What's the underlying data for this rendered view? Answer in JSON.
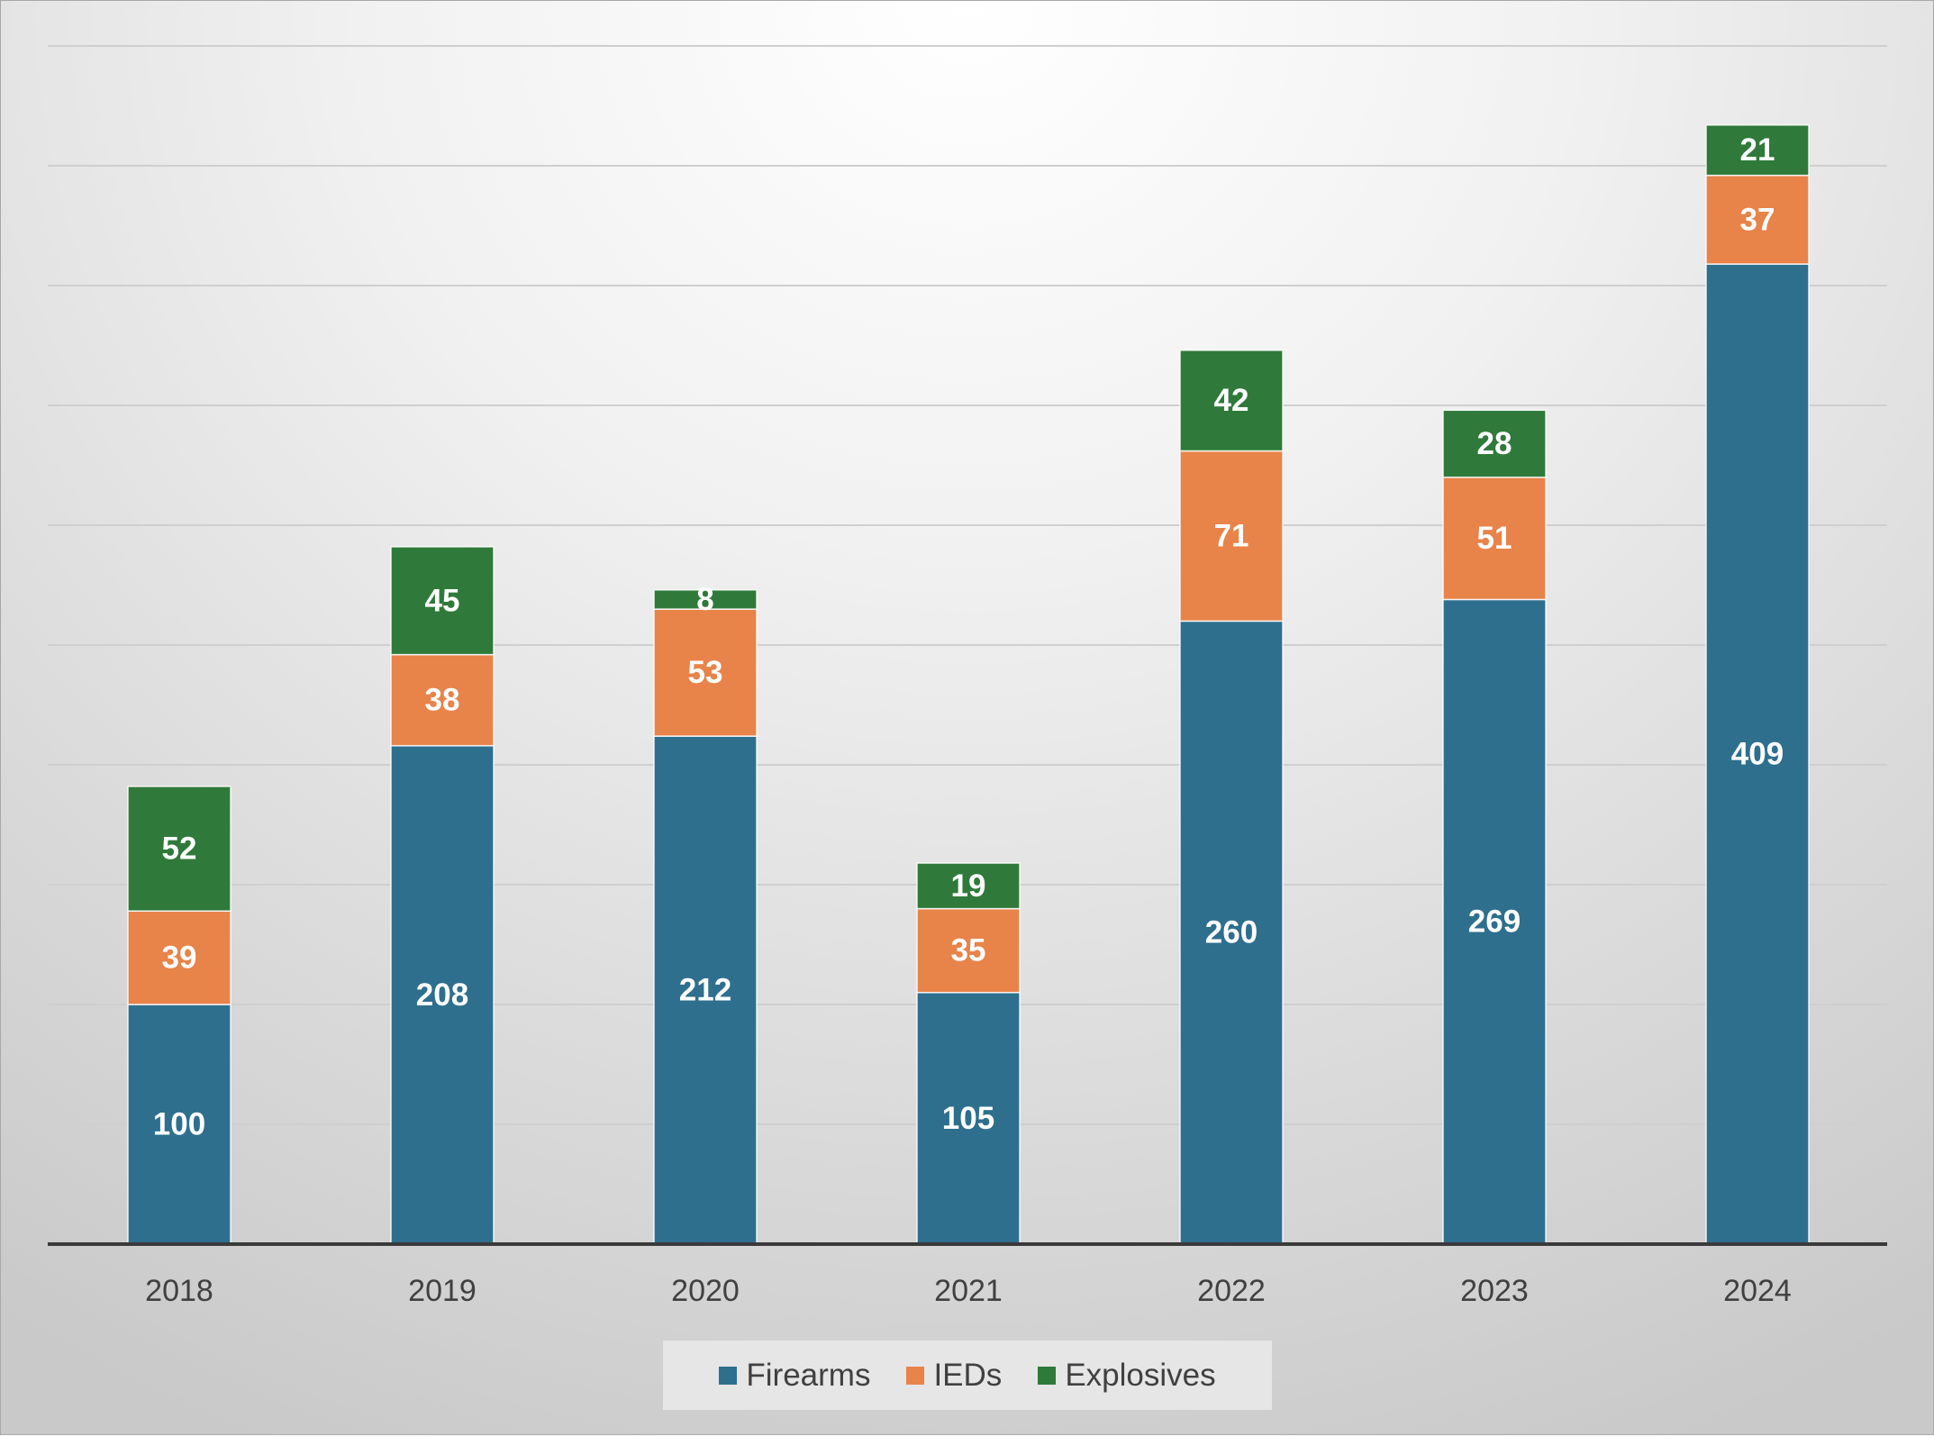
{
  "chart_data": {
    "type": "bar",
    "stacked": true,
    "title": "",
    "xlabel": "",
    "ylabel": "",
    "categories": [
      "2018",
      "2019",
      "2020",
      "2021",
      "2022",
      "2023",
      "2024"
    ],
    "series": [
      {
        "name": "Firearms",
        "color": "#2e6f8e",
        "values": [
          100,
          208,
          212,
          105,
          260,
          269,
          409
        ]
      },
      {
        "name": "IEDs",
        "color": "#e8834a",
        "values": [
          39,
          38,
          53,
          35,
          71,
          51,
          37
        ]
      },
      {
        "name": "Explosives",
        "color": "#2f7a3a",
        "values": [
          52,
          45,
          8,
          19,
          42,
          28,
          21
        ]
      }
    ],
    "ylim": [
      0,
      500
    ],
    "y_gridline_step": 50,
    "y_axis_labels_visible": false,
    "grid": true,
    "data_labels": true,
    "legend_position": "bottom"
  }
}
